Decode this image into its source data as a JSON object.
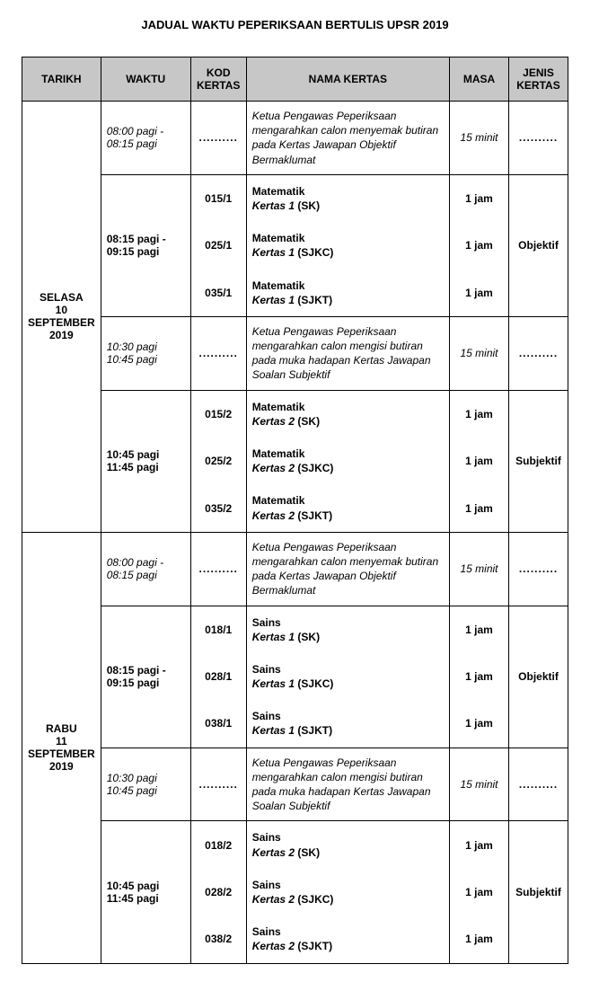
{
  "title": "JADUAL WAKTU PEPERIKSAAN BERTULIS UPSR 2019",
  "headers": {
    "tarikh": "TARIKH",
    "waktu": "WAKTU",
    "kod": "KOD KERTAS",
    "nama": "NAMA KERTAS",
    "masa": "MASA",
    "jenis": "JENIS KERTAS"
  },
  "dots": "..........",
  "days": [
    {
      "tarikh": "SELASA\n10\nSEPTEMBER\n2019",
      "slots": [
        {
          "type": "instr",
          "waktu": "08:00 pagi -\n08:15 pagi",
          "nama": "Ketua Pengawas Peperiksaan mengarahkan calon menyemak butiran pada Kertas Jawapan Objektif Bermaklumat",
          "masa": "15 minit"
        },
        {
          "type": "papers",
          "waktu": "08:15 pagi -\n09:15 pagi",
          "jenis": "Objektif",
          "papers": [
            {
              "kod": "015/1",
              "subject": "Matematik",
              "name_italic": "Kertas 1",
              "name_norm": " (SK)",
              "masa": "1 jam"
            },
            {
              "kod": "025/1",
              "subject": "Matematik",
              "name_italic": "Kertas 1",
              "name_norm": " (SJKC)",
              "masa": "1 jam"
            },
            {
              "kod": "035/1",
              "subject": "Matematik",
              "name_italic": "Kertas 1",
              "name_norm": " (SJKT)",
              "masa": "1 jam"
            }
          ]
        },
        {
          "type": "instr",
          "waktu": "10:30 pagi\n10:45 pagi",
          "nama": "Ketua Pengawas Peperiksaan mengarahkan calon mengisi butiran pada muka hadapan Kertas Jawapan Soalan Subjektif",
          "masa": "15 minit"
        },
        {
          "type": "papers",
          "waktu": "10:45 pagi\n11:45 pagi",
          "jenis": "Subjektif",
          "papers": [
            {
              "kod": "015/2",
              "subject": "Matematik",
              "name_italic": "Kertas 2",
              "name_norm": " (SK)",
              "masa": "1 jam"
            },
            {
              "kod": "025/2",
              "subject": "Matematik",
              "name_italic": "Kertas 2",
              "name_norm": " (SJKC)",
              "masa": "1 jam"
            },
            {
              "kod": "035/2",
              "subject": "Matematik",
              "name_italic": "Kertas 2",
              "name_norm": " (SJKT)",
              "masa": "1 jam"
            }
          ]
        }
      ]
    },
    {
      "tarikh": "RABU\n11\nSEPTEMBER\n2019",
      "slots": [
        {
          "type": "instr",
          "waktu": "08:00 pagi -\n08:15 pagi",
          "nama": "Ketua Pengawas Peperiksaan mengarahkan calon menyemak butiran pada Kertas Jawapan Objektif Bermaklumat",
          "masa": "15 minit"
        },
        {
          "type": "papers",
          "waktu": "08:15 pagi -\n09:15 pagi",
          "jenis": "Objektif",
          "papers": [
            {
              "kod": "018/1",
              "subject": "Sains",
              "name_italic": "Kertas 1",
              "name_norm": " (SK)",
              "masa": "1 jam"
            },
            {
              "kod": "028/1",
              "subject": "Sains",
              "name_italic": "Kertas 1",
              "name_norm": " (SJKC)",
              "masa": "1 jam"
            },
            {
              "kod": "038/1",
              "subject": "Sains",
              "name_italic": "Kertas 1",
              "name_norm": " (SJKT)",
              "masa": "1 jam"
            }
          ]
        },
        {
          "type": "instr",
          "waktu": "10:30 pagi\n10:45 pagi",
          "nama": "Ketua Pengawas Peperiksaan mengarahkan calon mengisi butiran pada muka hadapan Kertas Jawapan Soalan Subjektif",
          "masa": "15 minit"
        },
        {
          "type": "papers",
          "waktu": "10:45 pagi\n11:45 pagi",
          "jenis": "Subjektif",
          "papers": [
            {
              "kod": "018/2",
              "subject": "Sains",
              "name_italic": "Kertas 2",
              "name_norm": " (SK)",
              "masa": "1 jam"
            },
            {
              "kod": "028/2",
              "subject": "Sains",
              "name_italic": "Kertas 2",
              "name_norm": " (SJKC)",
              "masa": "1 jam"
            },
            {
              "kod": "038/2",
              "subject": "Sains",
              "name_italic": "Kertas 2",
              "name_norm": " (SJKT)",
              "masa": "1 jam"
            }
          ]
        }
      ]
    }
  ]
}
